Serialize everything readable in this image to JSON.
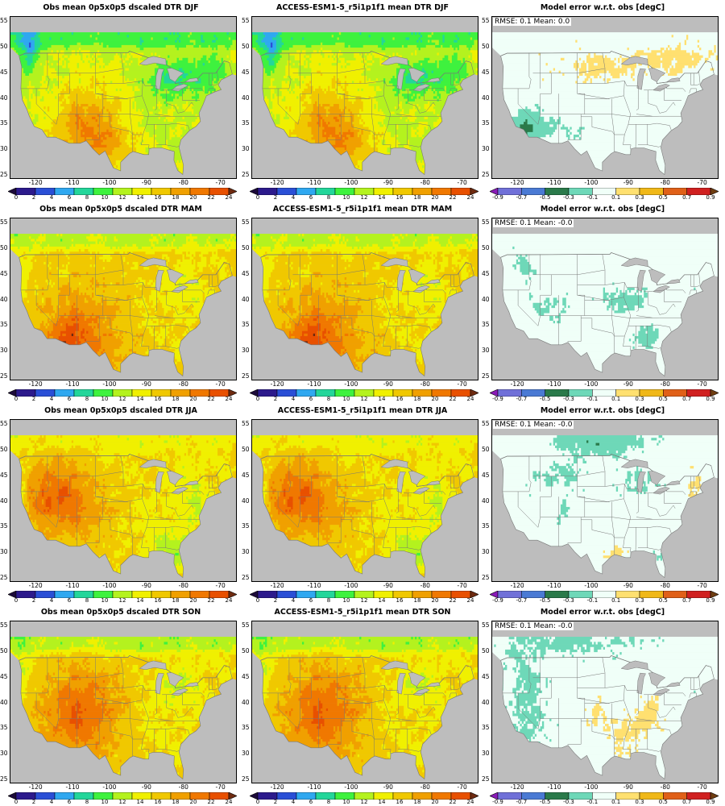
{
  "colors": {
    "dtr": [
      "#1c0a3a",
      "#2c1a8c",
      "#2a4fd6",
      "#2fa8f0",
      "#23d69a",
      "#3ef23e",
      "#b4f21e",
      "#f0f000",
      "#f0c800",
      "#f0a000",
      "#f07800",
      "#e85000",
      "#6e2a10"
    ],
    "err": [
      "#8a1ab8",
      "#7070d8",
      "#4a7ad4",
      "#2a7a4a",
      "#6ed8b8",
      "#f0fff8",
      "#ffe070",
      "#f0b818",
      "#e06018",
      "#d02020",
      "#6e3c10"
    ],
    "land_missing": "#bdbdbd",
    "state_lines": "#777777"
  },
  "chart_data": [
    {
      "type": "heatmap",
      "title": "Obs mean 0p5x0p5 dscaled DTR DJF",
      "season": "DJF",
      "field": "obs",
      "x_ticks": [
        "-120",
        "-110",
        "-100",
        "-90",
        "-80",
        "-70"
      ],
      "y_ticks": [
        "25",
        "30",
        "35",
        "40",
        "45",
        "50",
        "55"
      ],
      "colorbar_labels": [
        "0",
        "2",
        "4",
        "6",
        "8",
        "10",
        "12",
        "14",
        "16",
        "18",
        "20",
        "22",
        "24"
      ]
    },
    {
      "type": "heatmap",
      "title": "ACCESS-ESM1-5_r5i1p1f1 mean DTR DJF",
      "season": "DJF",
      "field": "model",
      "x_ticks": [
        "-120",
        "-110",
        "-100",
        "-90",
        "-80",
        "-70"
      ],
      "y_ticks": [
        "25",
        "30",
        "35",
        "40",
        "45",
        "50",
        "55"
      ],
      "colorbar_labels": [
        "0",
        "2",
        "4",
        "6",
        "8",
        "10",
        "12",
        "14",
        "16",
        "18",
        "20",
        "22",
        "24"
      ]
    },
    {
      "type": "heatmap",
      "title": "Model error w.r.t. obs [degC]",
      "season": "DJF",
      "field": "error",
      "stats": "RMSE: 0.1  Mean: 0.0",
      "x_ticks": [
        "-120",
        "-110",
        "-100",
        "-90",
        "-80",
        "-70"
      ],
      "y_ticks": [
        "25",
        "30",
        "35",
        "40",
        "45",
        "50",
        "55"
      ],
      "colorbar_labels": [
        "-0.9",
        "-0.7",
        "-0.5",
        "-0.3",
        "-0.1",
        "0.1",
        "0.3",
        "0.5",
        "0.7",
        "0.9"
      ]
    },
    {
      "type": "heatmap",
      "title": "Obs mean 0p5x0p5 dscaled DTR MAM",
      "season": "MAM",
      "field": "obs",
      "x_ticks": [
        "-120",
        "-110",
        "-100",
        "-90",
        "-80",
        "-70"
      ],
      "y_ticks": [
        "25",
        "30",
        "35",
        "40",
        "45",
        "50",
        "55"
      ],
      "colorbar_labels": [
        "0",
        "2",
        "4",
        "6",
        "8",
        "10",
        "12",
        "14",
        "16",
        "18",
        "20",
        "22",
        "24"
      ]
    },
    {
      "type": "heatmap",
      "title": "ACCESS-ESM1-5_r5i1p1f1 mean DTR MAM",
      "season": "MAM",
      "field": "model",
      "x_ticks": [
        "-120",
        "-110",
        "-100",
        "-90",
        "-80",
        "-70"
      ],
      "y_ticks": [
        "25",
        "30",
        "35",
        "40",
        "45",
        "50",
        "55"
      ],
      "colorbar_labels": [
        "0",
        "2",
        "4",
        "6",
        "8",
        "10",
        "12",
        "14",
        "16",
        "18",
        "20",
        "22",
        "24"
      ]
    },
    {
      "type": "heatmap",
      "title": "Model error w.r.t. obs [degC]",
      "season": "MAM",
      "field": "error",
      "stats": "RMSE: 0.1  Mean: -0.0",
      "x_ticks": [
        "-120",
        "-110",
        "-100",
        "-90",
        "-80",
        "-70"
      ],
      "y_ticks": [
        "25",
        "30",
        "35",
        "40",
        "45",
        "50",
        "55"
      ],
      "colorbar_labels": [
        "-0.9",
        "-0.7",
        "-0.5",
        "-0.3",
        "-0.1",
        "0.1",
        "0.3",
        "0.5",
        "0.7",
        "0.9"
      ]
    },
    {
      "type": "heatmap",
      "title": "Obs mean 0p5x0p5 dscaled DTR JJA",
      "season": "JJA",
      "field": "obs",
      "x_ticks": [
        "-120",
        "-110",
        "-100",
        "-90",
        "-80",
        "-70"
      ],
      "y_ticks": [
        "25",
        "30",
        "35",
        "40",
        "45",
        "50",
        "55"
      ],
      "colorbar_labels": [
        "0",
        "2",
        "4",
        "6",
        "8",
        "10",
        "12",
        "14",
        "16",
        "18",
        "20",
        "22",
        "24"
      ]
    },
    {
      "type": "heatmap",
      "title": "ACCESS-ESM1-5_r5i1p1f1 mean DTR JJA",
      "season": "JJA",
      "field": "model",
      "x_ticks": [
        "-120",
        "-110",
        "-100",
        "-90",
        "-80",
        "-70"
      ],
      "y_ticks": [
        "25",
        "30",
        "35",
        "40",
        "45",
        "50",
        "55"
      ],
      "colorbar_labels": [
        "0",
        "2",
        "4",
        "6",
        "8",
        "10",
        "12",
        "14",
        "16",
        "18",
        "20",
        "22",
        "24"
      ]
    },
    {
      "type": "heatmap",
      "title": "Model error w.r.t. obs [degC]",
      "season": "JJA",
      "field": "error",
      "stats": "RMSE: 0.1  Mean: -0.0",
      "x_ticks": [
        "-120",
        "-110",
        "-100",
        "-90",
        "-80",
        "-70"
      ],
      "y_ticks": [
        "25",
        "30",
        "35",
        "40",
        "45",
        "50",
        "55"
      ],
      "colorbar_labels": [
        "-0.9",
        "-0.7",
        "-0.5",
        "-0.3",
        "-0.1",
        "0.1",
        "0.3",
        "0.5",
        "0.7",
        "0.9"
      ]
    },
    {
      "type": "heatmap",
      "title": "Obs mean 0p5x0p5 dscaled DTR SON",
      "season": "SON",
      "field": "obs",
      "x_ticks": [
        "-120",
        "-110",
        "-100",
        "-90",
        "-80",
        "-70"
      ],
      "y_ticks": [
        "25",
        "30",
        "35",
        "40",
        "45",
        "50",
        "55"
      ],
      "colorbar_labels": [
        "0",
        "2",
        "4",
        "6",
        "8",
        "10",
        "12",
        "14",
        "16",
        "18",
        "20",
        "22",
        "24"
      ]
    },
    {
      "type": "heatmap",
      "title": "ACCESS-ESM1-5_r5i1p1f1 mean DTR SON",
      "season": "SON",
      "field": "model",
      "x_ticks": [
        "-120",
        "-110",
        "-100",
        "-90",
        "-80",
        "-70"
      ],
      "y_ticks": [
        "25",
        "30",
        "35",
        "40",
        "45",
        "50",
        "55"
      ],
      "colorbar_labels": [
        "0",
        "2",
        "4",
        "6",
        "8",
        "10",
        "12",
        "14",
        "16",
        "18",
        "20",
        "22",
        "24"
      ]
    },
    {
      "type": "heatmap",
      "title": "Model error w.r.t. obs [degC]",
      "season": "SON",
      "field": "error",
      "stats": "RMSE: 0.1  Mean: -0.0",
      "x_ticks": [
        "-120",
        "-110",
        "-100",
        "-90",
        "-80",
        "-70"
      ],
      "y_ticks": [
        "25",
        "30",
        "35",
        "40",
        "45",
        "50",
        "55"
      ],
      "colorbar_labels": [
        "-0.9",
        "-0.7",
        "-0.5",
        "-0.3",
        "-0.1",
        "0.1",
        "0.3",
        "0.5",
        "0.7",
        "0.9"
      ]
    }
  ]
}
